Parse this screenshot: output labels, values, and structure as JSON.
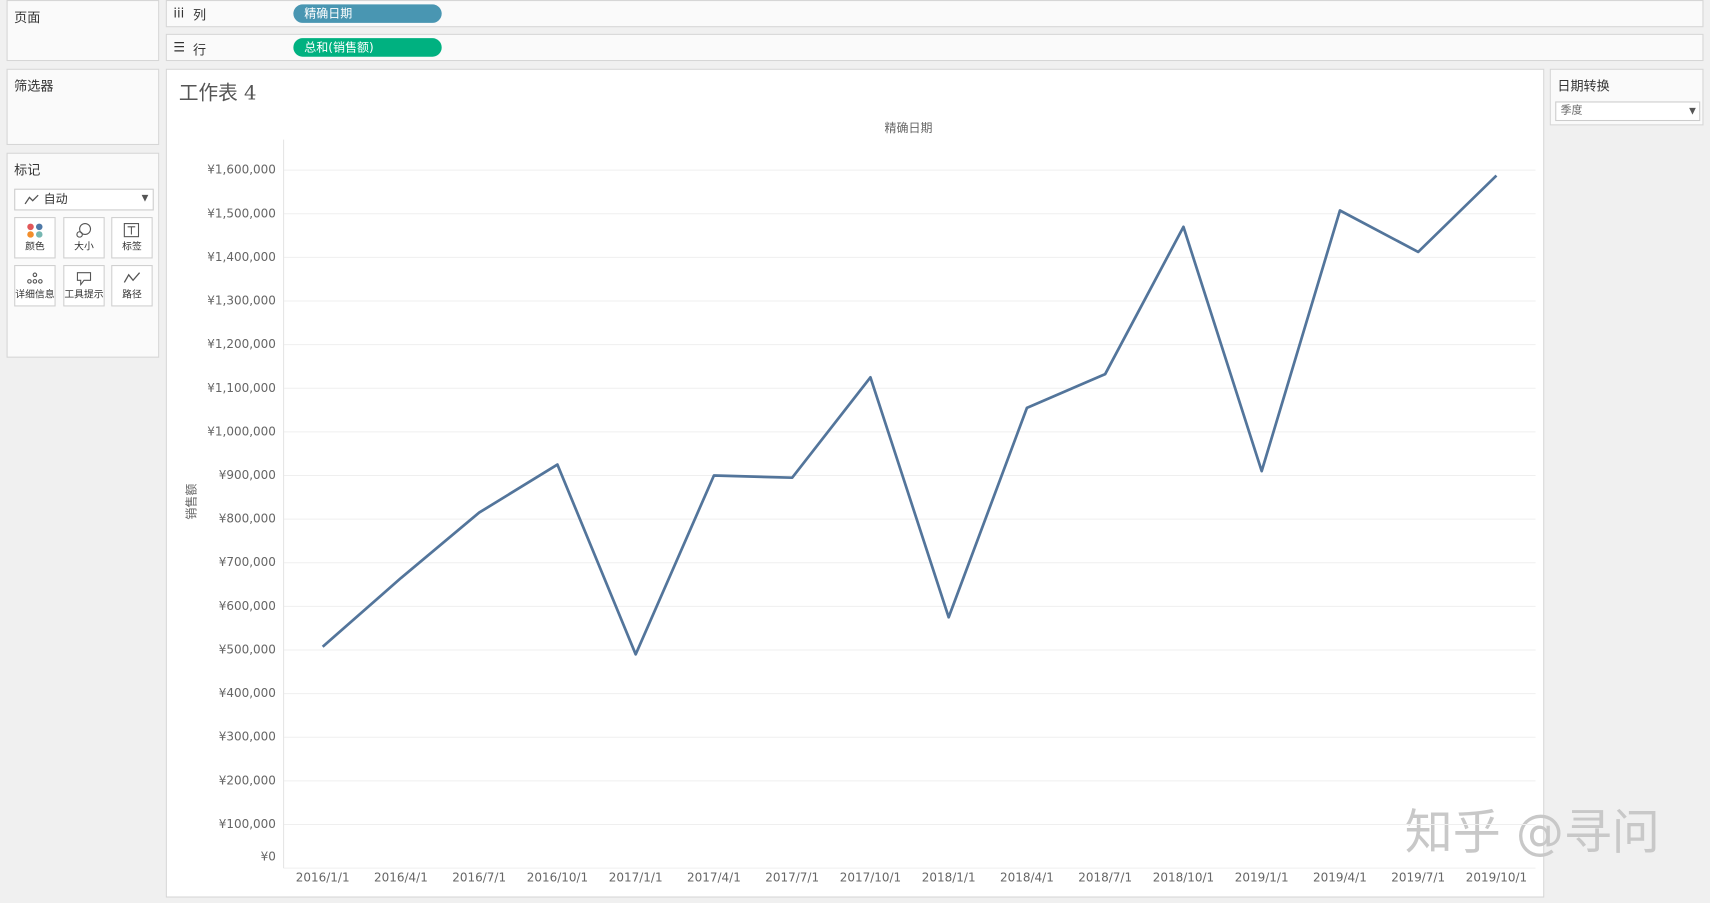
{
  "panels": {
    "pages": "页面",
    "filters": "筛选器",
    "marks": "标记",
    "mark_type": "自动",
    "mark_buttons": [
      "颜色",
      "大小",
      "标签",
      "详细信息",
      "工具提示",
      "路径"
    ]
  },
  "shelves": {
    "columns_label": "列",
    "columns_pill": "精确日期",
    "rows_label": "行",
    "rows_pill": "总和(销售额)"
  },
  "parameter": {
    "title": "日期转换",
    "value": "季度"
  },
  "watermark": "知乎 @寻问",
  "chart_data": {
    "type": "line",
    "title": "工作表 4",
    "x_label": "精确日期",
    "y_label": "销售额",
    "categories": [
      "2016/1/1",
      "2016/4/1",
      "2016/7/1",
      "2016/10/1",
      "2017/1/1",
      "2017/4/1",
      "2017/7/1",
      "2017/10/1",
      "2018/1/1",
      "2018/4/1",
      "2018/7/1",
      "2018/10/1",
      "2019/1/1",
      "2019/4/1",
      "2019/7/1",
      "2019/10/1"
    ],
    "values": [
      507500,
      665000,
      815000,
      925000,
      490000,
      900000,
      895000,
      1125000,
      575000,
      1055000,
      1132500,
      1470000,
      910000,
      1507500,
      1412500,
      1587500
    ],
    "color": "#53759b",
    "grid": true,
    "ylim": [
      0,
      1670000
    ],
    "yticks": [
      {
        "value": 0,
        "label": "¥0"
      },
      {
        "value": 100000,
        "label": "¥100,000"
      },
      {
        "value": 200000,
        "label": "¥200,000"
      },
      {
        "value": 300000,
        "label": "¥300,000"
      },
      {
        "value": 400000,
        "label": "¥400,000"
      },
      {
        "value": 500000,
        "label": "¥500,000"
      },
      {
        "value": 600000,
        "label": "¥600,000"
      },
      {
        "value": 700000,
        "label": "¥700,000"
      },
      {
        "value": 800000,
        "label": "¥800,000"
      },
      {
        "value": 900000,
        "label": "¥900,000"
      },
      {
        "value": 1000000,
        "label": "¥1,000,000"
      },
      {
        "value": 1100000,
        "label": "¥1,100,000"
      },
      {
        "value": 1200000,
        "label": "¥1,200,000"
      },
      {
        "value": 1300000,
        "label": "¥1,300,000"
      },
      {
        "value": 1400000,
        "label": "¥1,400,000"
      },
      {
        "value": 1500000,
        "label": "¥1,500,000"
      },
      {
        "value": 1600000,
        "label": "¥1,600,000"
      }
    ]
  }
}
